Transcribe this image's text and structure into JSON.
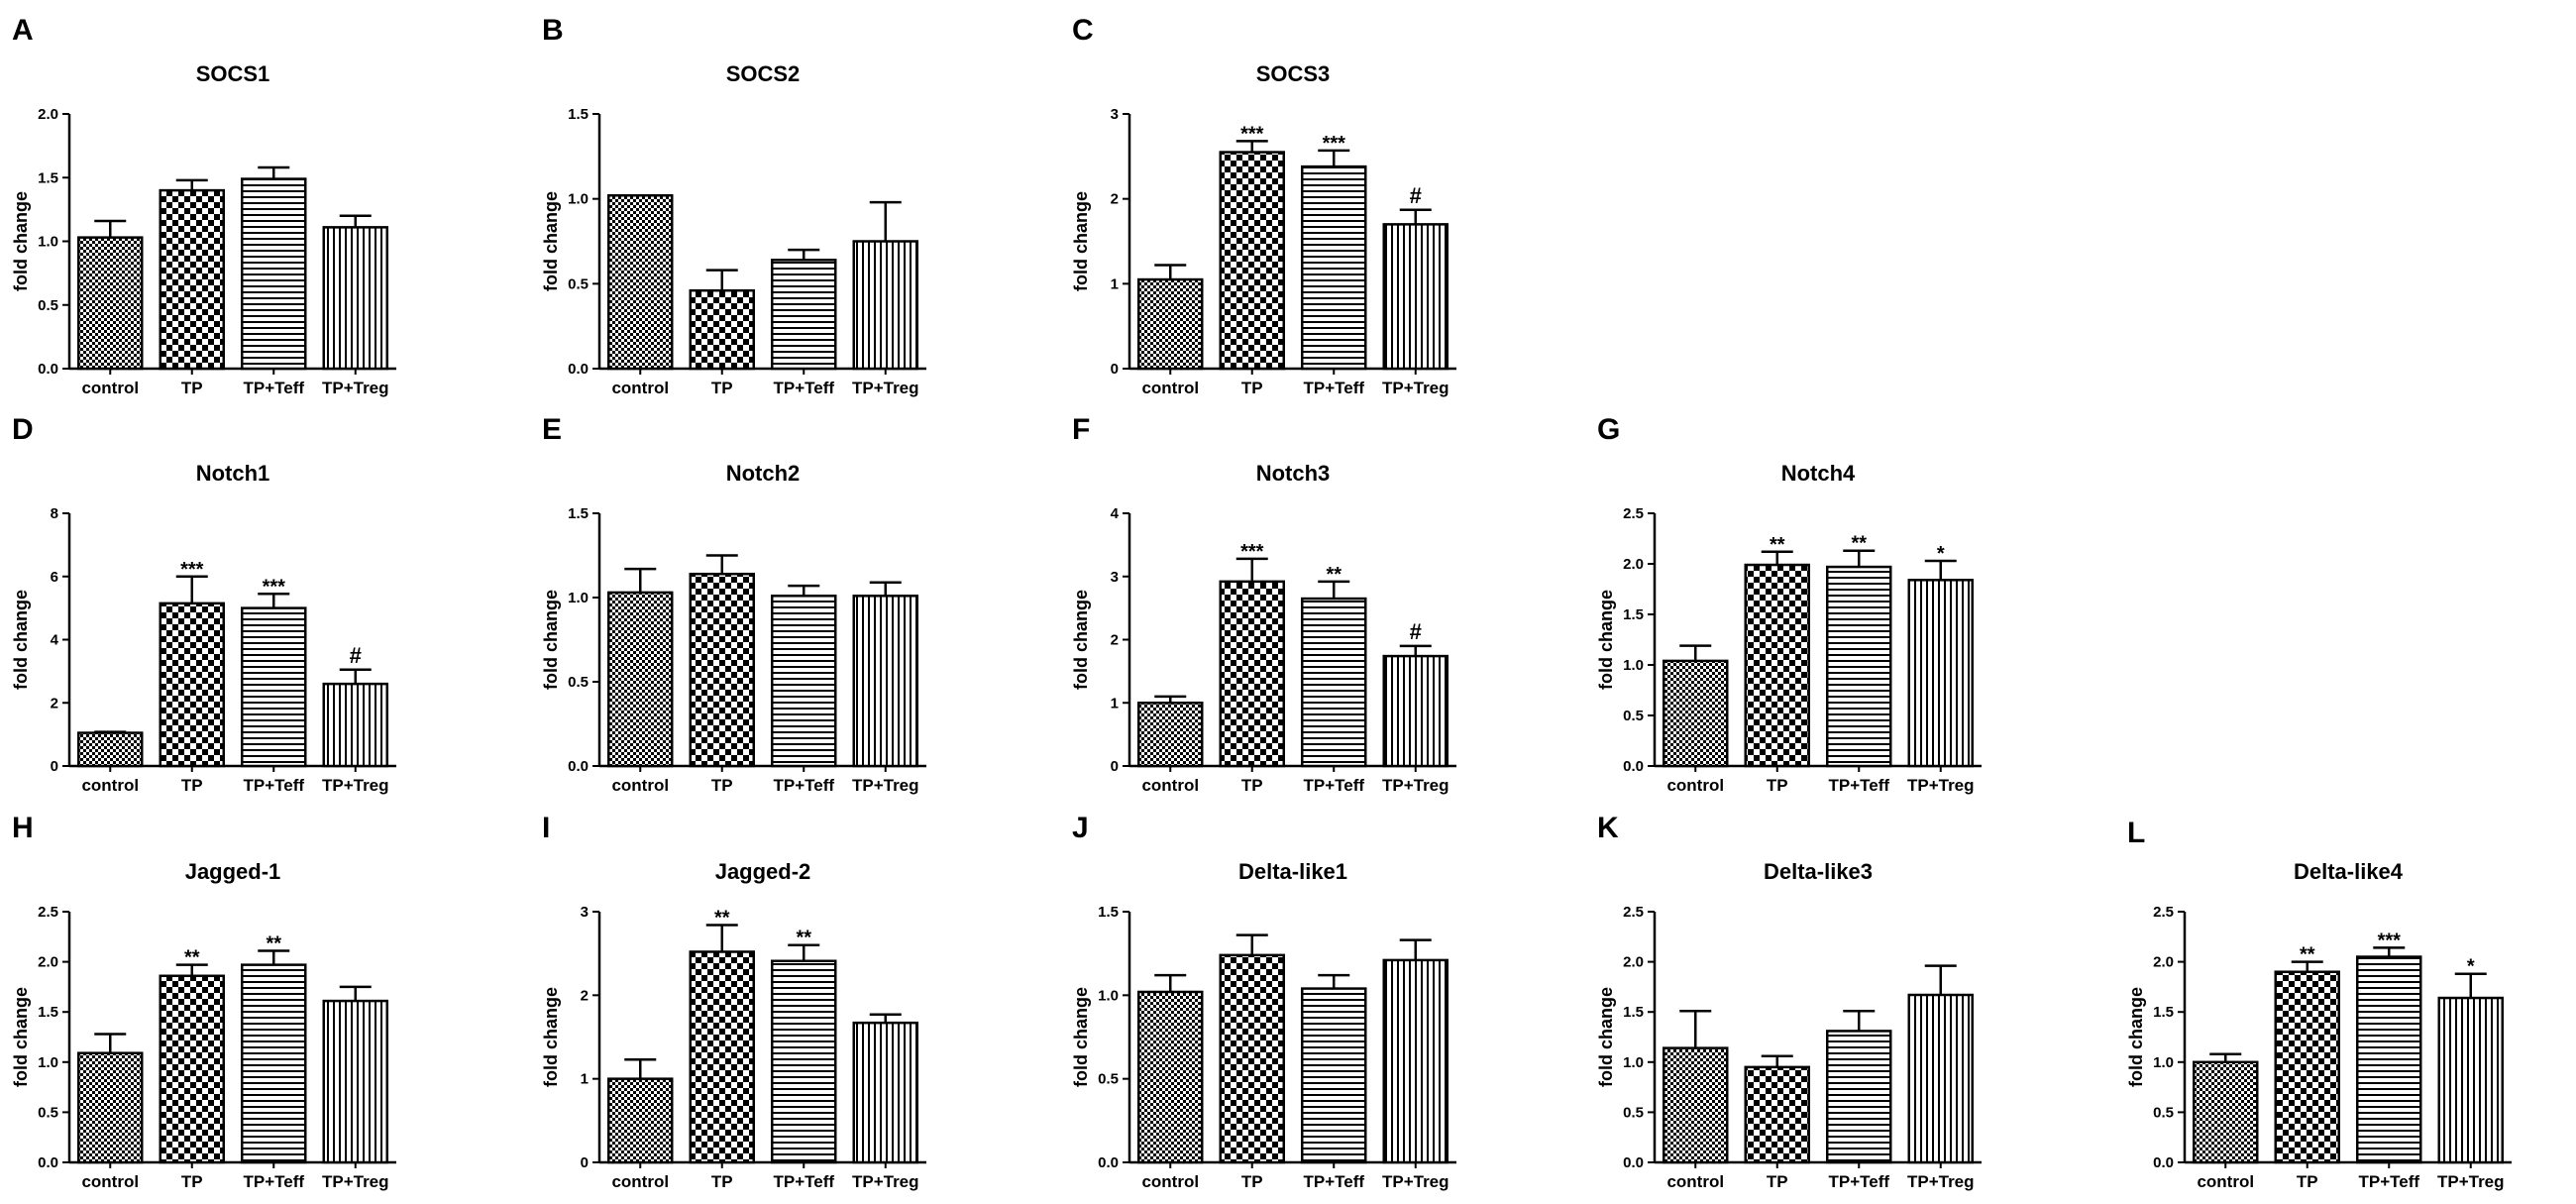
{
  "colors": {
    "ink": "#000000",
    "background": "#ffffff"
  },
  "chart_data": [
    {
      "panel": "A",
      "type": "bar",
      "title": "SOCS1",
      "ylabel": "fold change",
      "xlabel": "",
      "categories": [
        "control",
        "TP",
        "TP+Teff",
        "TP+Treg"
      ],
      "patterns": [
        "fine-check",
        "check",
        "hstripe",
        "vstripe"
      ],
      "values": [
        1.03,
        1.4,
        1.49,
        1.11
      ],
      "errors": [
        0.13,
        0.08,
        0.09,
        0.09
      ],
      "sig": [
        "",
        "",
        "",
        ""
      ],
      "ylim": [
        0,
        2.0
      ],
      "yticks": [
        "0.0",
        "0.5",
        "1.0",
        "1.5",
        "2.0"
      ]
    },
    {
      "panel": "B",
      "type": "bar",
      "title": "SOCS2",
      "ylabel": "fold change",
      "xlabel": "",
      "categories": [
        "control",
        "TP",
        "TP+Teff",
        "TP+Treg"
      ],
      "patterns": [
        "fine-check",
        "check",
        "hstripe",
        "vstripe"
      ],
      "values": [
        1.02,
        0.46,
        0.64,
        0.75
      ],
      "errors": [
        0.0,
        0.12,
        0.06,
        0.23
      ],
      "sig": [
        "",
        "",
        "",
        ""
      ],
      "ylim": [
        0,
        1.5
      ],
      "yticks": [
        "0.0",
        "0.5",
        "1.0",
        "1.5"
      ]
    },
    {
      "panel": "C",
      "type": "bar",
      "title": "SOCS3",
      "ylabel": "fold change",
      "xlabel": "",
      "categories": [
        "control",
        "TP",
        "TP+Teff",
        "TP+Treg"
      ],
      "patterns": [
        "fine-check",
        "check",
        "hstripe",
        "vstripe"
      ],
      "values": [
        1.05,
        2.55,
        2.38,
        1.7
      ],
      "errors": [
        0.17,
        0.13,
        0.19,
        0.17
      ],
      "sig": [
        "",
        "***",
        "***",
        "#"
      ],
      "ylim": [
        0,
        3
      ],
      "yticks": [
        "0",
        "1",
        "2",
        "3"
      ]
    },
    {
      "panel": "D",
      "type": "bar",
      "title": "Notch1",
      "ylabel": "fold change",
      "xlabel": "",
      "categories": [
        "control",
        "TP",
        "TP+Teff",
        "TP+Treg"
      ],
      "patterns": [
        "fine-check",
        "check",
        "hstripe",
        "vstripe"
      ],
      "values": [
        1.05,
        5.15,
        5.0,
        2.6
      ],
      "errors": [
        0.03,
        0.85,
        0.45,
        0.45
      ],
      "sig": [
        "",
        "***",
        "***",
        "#"
      ],
      "ylim": [
        0,
        8
      ],
      "yticks": [
        "0",
        "2",
        "4",
        "6",
        "8"
      ]
    },
    {
      "panel": "E",
      "type": "bar",
      "title": "Notch2",
      "ylabel": "fold change",
      "xlabel": "",
      "categories": [
        "control",
        "TP",
        "TP+Teff",
        "TP+Treg"
      ],
      "patterns": [
        "fine-check",
        "check",
        "hstripe",
        "vstripe"
      ],
      "values": [
        1.03,
        1.14,
        1.01,
        1.01
      ],
      "errors": [
        0.14,
        0.11,
        0.06,
        0.08
      ],
      "sig": [
        "",
        "",
        "",
        ""
      ],
      "ylim": [
        0,
        1.5
      ],
      "yticks": [
        "0.0",
        "0.5",
        "1.0",
        "1.5"
      ]
    },
    {
      "panel": "F",
      "type": "bar",
      "title": "Notch3",
      "ylabel": "fold change",
      "xlabel": "",
      "categories": [
        "control",
        "TP",
        "TP+Teff",
        "TP+Treg"
      ],
      "patterns": [
        "fine-check",
        "check",
        "hstripe",
        "vstripe"
      ],
      "values": [
        1.0,
        2.92,
        2.65,
        1.74
      ],
      "errors": [
        0.1,
        0.36,
        0.27,
        0.16
      ],
      "sig": [
        "",
        "***",
        "**",
        "#"
      ],
      "ylim": [
        0,
        4
      ],
      "yticks": [
        "0",
        "1",
        "2",
        "3",
        "4"
      ]
    },
    {
      "panel": "G",
      "type": "bar",
      "title": "Notch4",
      "ylabel": "fold change",
      "xlabel": "",
      "categories": [
        "control",
        "TP",
        "TP+Teff",
        "TP+Treg"
      ],
      "patterns": [
        "fine-check",
        "check",
        "hstripe",
        "vstripe"
      ],
      "values": [
        1.04,
        1.99,
        1.97,
        1.84
      ],
      "errors": [
        0.15,
        0.13,
        0.16,
        0.19
      ],
      "sig": [
        "",
        "**",
        "**",
        "*"
      ],
      "ylim": [
        0,
        2.5
      ],
      "yticks": [
        "0.0",
        "0.5",
        "1.0",
        "1.5",
        "2.0",
        "2.5"
      ]
    },
    {
      "panel": "H",
      "type": "bar",
      "title": "Jagged-1",
      "ylabel": "fold change",
      "xlabel": "",
      "categories": [
        "control",
        "TP",
        "TP+Teff",
        "TP+Treg"
      ],
      "patterns": [
        "fine-check",
        "check",
        "hstripe",
        "vstripe"
      ],
      "values": [
        1.09,
        1.86,
        1.97,
        1.61
      ],
      "errors": [
        0.19,
        0.11,
        0.14,
        0.14
      ],
      "sig": [
        "",
        "**",
        "**",
        ""
      ],
      "ylim": [
        0,
        2.5
      ],
      "yticks": [
        "0.0",
        "0.5",
        "1.0",
        "1.5",
        "2.0",
        "2.5"
      ]
    },
    {
      "panel": "I",
      "type": "bar",
      "title": "Jagged-2",
      "ylabel": "fold change",
      "xlabel": "",
      "categories": [
        "control",
        "TP",
        "TP+Teff",
        "TP+Treg"
      ],
      "patterns": [
        "fine-check",
        "check",
        "hstripe",
        "vstripe"
      ],
      "values": [
        1.0,
        2.52,
        2.41,
        1.67
      ],
      "errors": [
        0.23,
        0.32,
        0.19,
        0.1
      ],
      "sig": [
        "",
        "**",
        "**",
        ""
      ],
      "ylim": [
        0,
        3
      ],
      "yticks": [
        "0",
        "1",
        "2",
        "3"
      ]
    },
    {
      "panel": "J",
      "type": "bar",
      "title": "Delta-like1",
      "ylabel": "fold change",
      "xlabel": "",
      "categories": [
        "control",
        "TP",
        "TP+Teff",
        "TP+Treg"
      ],
      "patterns": [
        "fine-check",
        "check",
        "hstripe",
        "vstripe"
      ],
      "values": [
        1.02,
        1.24,
        1.04,
        1.21
      ],
      "errors": [
        0.1,
        0.12,
        0.08,
        0.12
      ],
      "sig": [
        "",
        "",
        "",
        ""
      ],
      "ylim": [
        0,
        1.5
      ],
      "yticks": [
        "0.0",
        "0.5",
        "1.0",
        "1.5"
      ]
    },
    {
      "panel": "K",
      "type": "bar",
      "title": "Delta-like3",
      "ylabel": "fold change",
      "xlabel": "",
      "categories": [
        "control",
        "TP",
        "TP+Teff",
        "TP+Treg"
      ],
      "patterns": [
        "fine-check",
        "check",
        "hstripe",
        "vstripe"
      ],
      "values": [
        1.14,
        0.95,
        1.31,
        1.67
      ],
      "errors": [
        0.37,
        0.11,
        0.2,
        0.29
      ],
      "sig": [
        "",
        "",
        "",
        ""
      ],
      "ylim": [
        0,
        2.5
      ],
      "yticks": [
        "0.0",
        "0.5",
        "1.0",
        "1.5",
        "2.0",
        "2.5"
      ]
    },
    {
      "panel": "L",
      "type": "bar",
      "title": "Delta-like4",
      "ylabel": "fold change",
      "xlabel": "",
      "categories": [
        "control",
        "TP",
        "TP+Teff",
        "TP+Treg"
      ],
      "patterns": [
        "fine-check",
        "check",
        "hstripe",
        "vstripe"
      ],
      "values": [
        1.0,
        1.9,
        2.05,
        1.64
      ],
      "errors": [
        0.08,
        0.1,
        0.09,
        0.24
      ],
      "sig": [
        "",
        "**",
        "***",
        "*"
      ],
      "ylim": [
        0,
        2.5
      ],
      "yticks": [
        "0.0",
        "0.5",
        "1.0",
        "1.5",
        "2.0",
        "2.5"
      ]
    }
  ]
}
